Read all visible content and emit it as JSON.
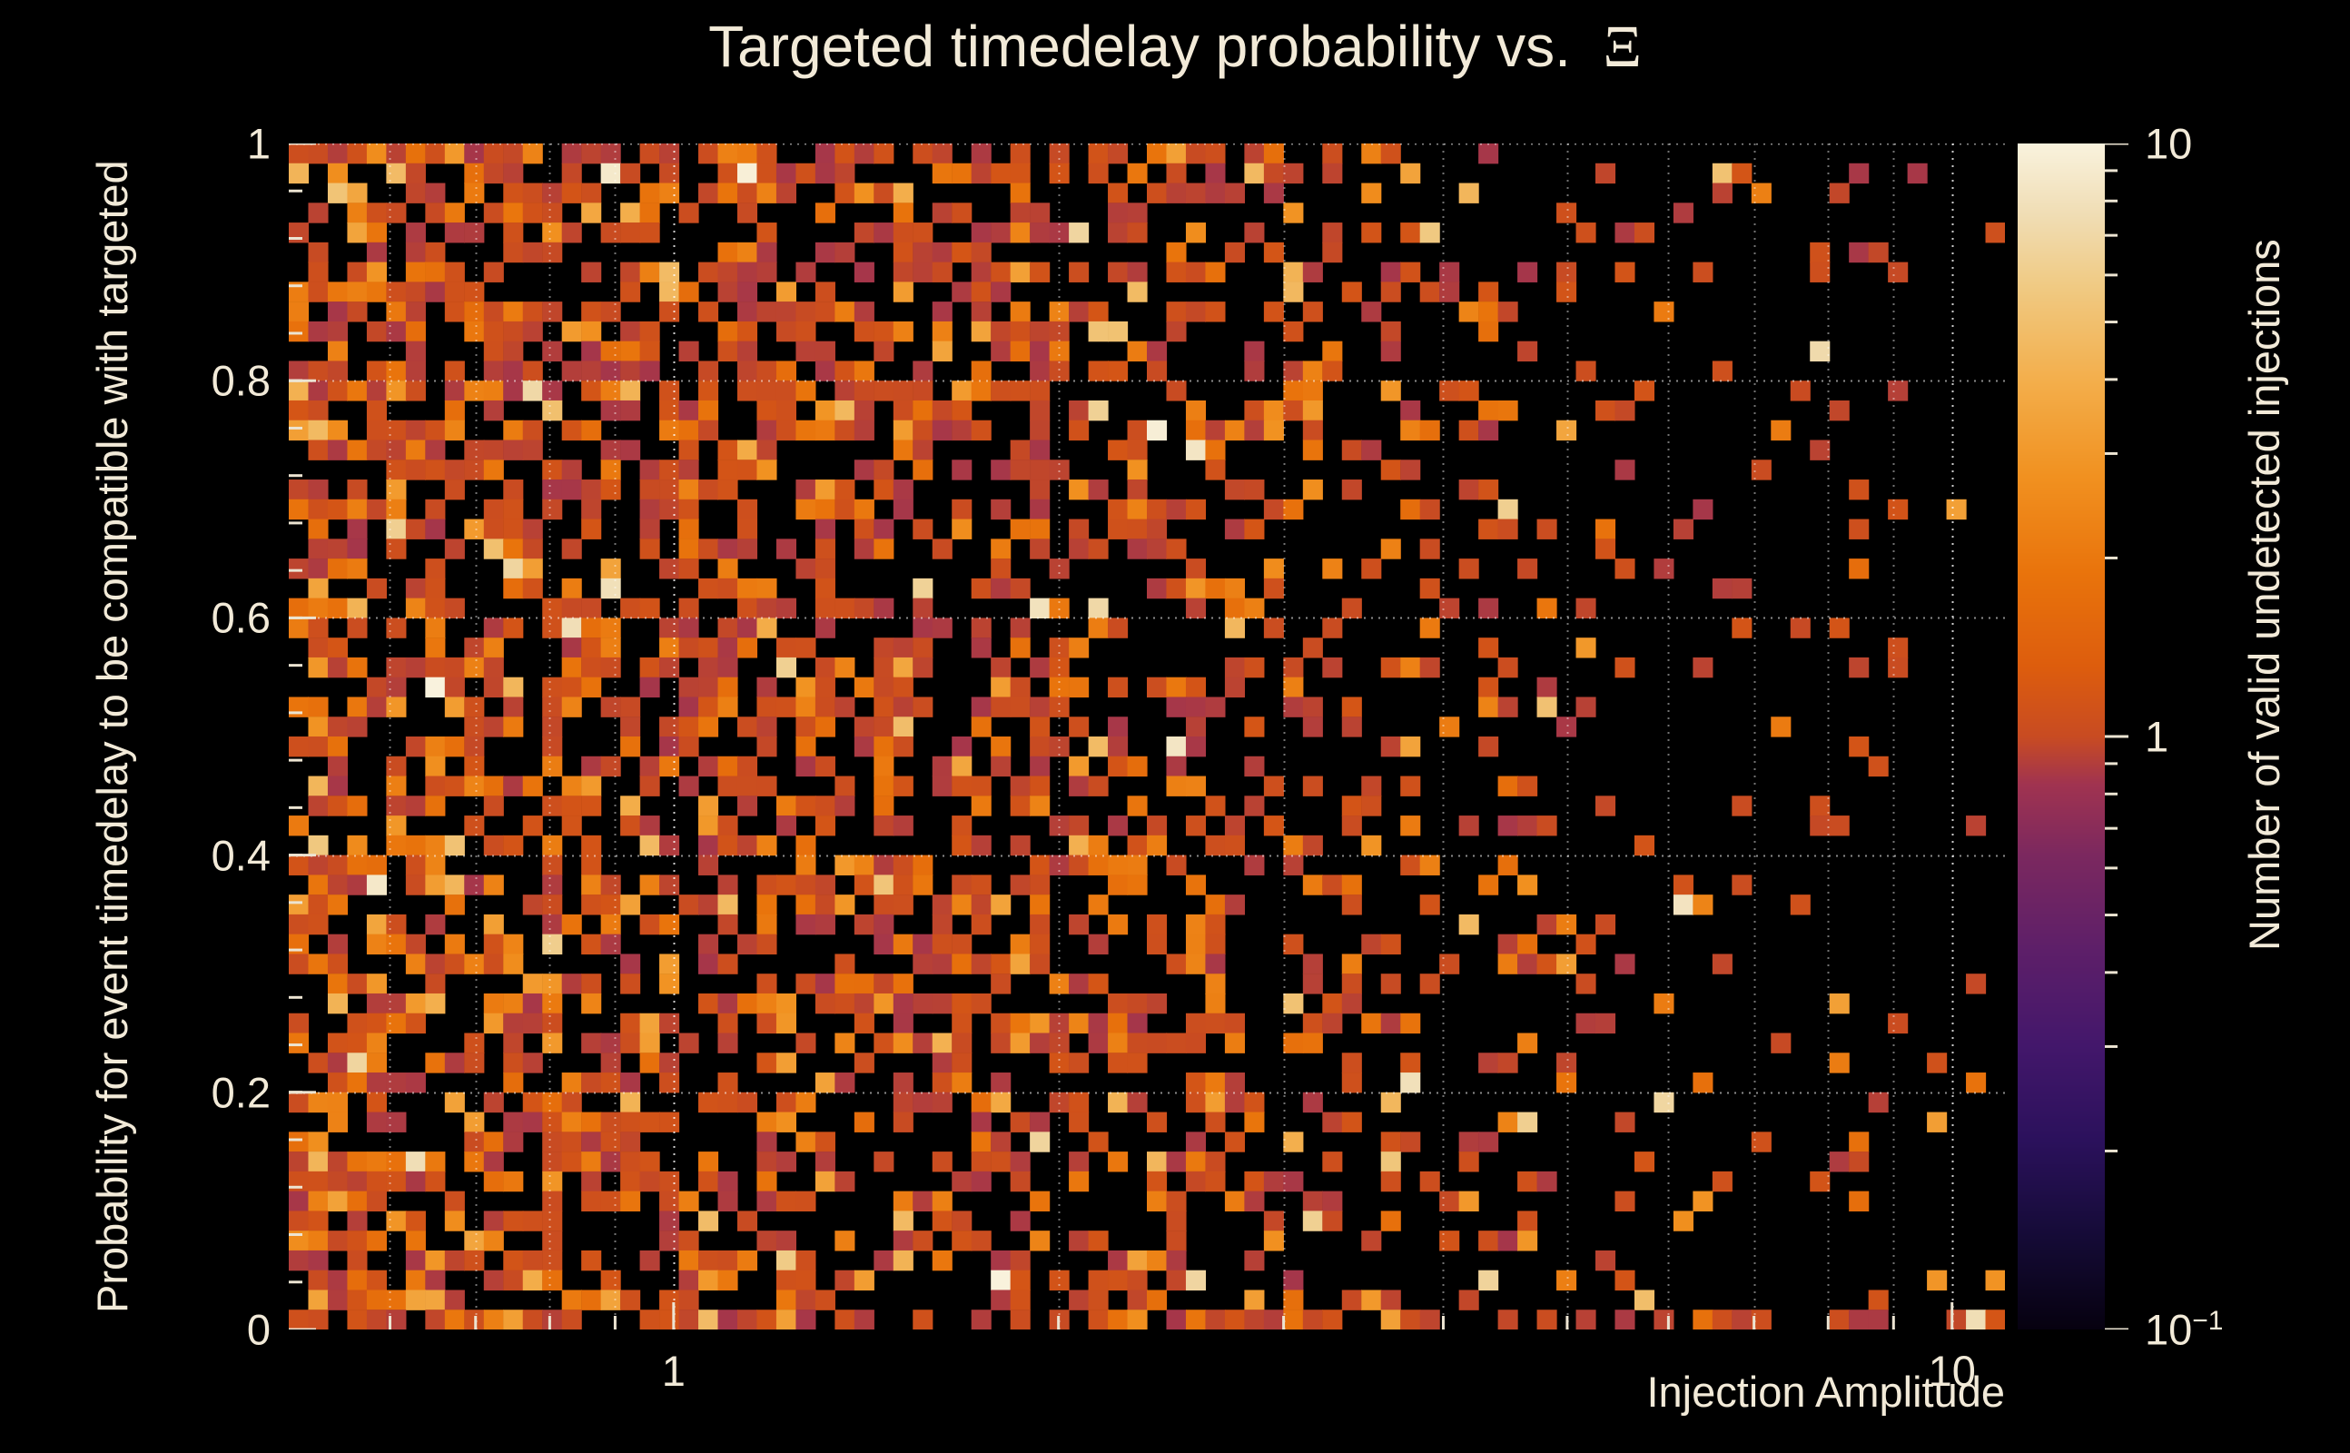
{
  "chart_data": {
    "type": "heatmap",
    "title": "Targeted timedelay probability vs.  Ξ",
    "title_text": "Targeted timedelay probability vs.  ",
    "title_symbol": "Ξ",
    "xlabel": "Injection Amplitude",
    "ylabel": "Probability for event timedelay to be compatible with targeted",
    "colorbar_label": "Number of valid undetected injections",
    "x_scale": "log",
    "x_range": [
      0.5,
      11
    ],
    "y_scale": "linear",
    "y_range": [
      0,
      1
    ],
    "z_scale": "log",
    "z_range": [
      0.1,
      10
    ],
    "x_ticks": [
      {
        "value": 1,
        "label": "1"
      },
      {
        "value": 10,
        "label": "10"
      }
    ],
    "x_minor_lines": [
      0.6,
      0.7,
      0.8,
      0.9,
      2,
      3,
      4,
      5,
      6,
      7,
      8,
      9
    ],
    "x_major_lines": [
      1,
      10
    ],
    "y_ticks": [
      {
        "value": 0,
        "label": "0"
      },
      {
        "value": 0.2,
        "label": "0.2"
      },
      {
        "value": 0.4,
        "label": "0.4"
      },
      {
        "value": 0.6,
        "label": "0.6"
      },
      {
        "value": 0.8,
        "label": "0.8"
      },
      {
        "value": 1,
        "label": "1"
      }
    ],
    "y_gridlines": [
      0.2,
      0.4,
      0.6,
      0.8,
      1.0
    ],
    "y_minor_step": 0.04,
    "colorbar_ticks": [
      {
        "frac": 1,
        "base": "10",
        "sup": ""
      },
      {
        "frac": 0.5,
        "base": "1",
        "sup": ""
      },
      {
        "frac": 0,
        "base": "10",
        "sup": "−1"
      }
    ],
    "colorbar_minor_values": [
      0.2,
      0.3,
      0.4,
      0.5,
      0.6,
      0.7,
      0.8,
      0.9,
      2,
      3,
      4,
      5,
      6,
      7,
      8,
      9
    ],
    "grid": {
      "cols": 88,
      "rows": 60
    },
    "occupancy_profile": [
      0.62,
      0.55,
      0.52,
      0.5,
      0.48,
      0.4,
      0.3,
      0.2,
      0.12,
      0.08,
      0.05
    ],
    "bottom_row_base": 0.95,
    "bottom_row_slope": 0.6,
    "top_row_boost": 1.2,
    "count_distribution": [
      [
        1,
        0.7
      ],
      [
        2,
        0.17
      ],
      [
        3,
        0.07
      ],
      [
        4,
        0.03
      ],
      [
        5,
        0.015
      ],
      [
        7,
        0.01
      ],
      [
        9,
        0.005
      ]
    ],
    "color_jitter": 0.07,
    "colormap": [
      [
        0.0,
        "#06010f"
      ],
      [
        0.08,
        "#150b37"
      ],
      [
        0.16,
        "#2b115c"
      ],
      [
        0.24,
        "#43176b"
      ],
      [
        0.32,
        "#5d1f69"
      ],
      [
        0.4,
        "#7b285f"
      ],
      [
        0.46,
        "#a03350"
      ],
      [
        0.5,
        "#c84b22"
      ],
      [
        0.56,
        "#dd5d0d"
      ],
      [
        0.64,
        "#e9740c"
      ],
      [
        0.72,
        "#f19120"
      ],
      [
        0.8,
        "#f3ae4b"
      ],
      [
        0.88,
        "#f0ca83"
      ],
      [
        0.94,
        "#f0ddb4"
      ],
      [
        1.0,
        "#f9f2dd"
      ]
    ],
    "background": "#000000",
    "text_color": "#f2ead8",
    "grid_color_rgba": "255,255,255",
    "seed": 1337
  }
}
